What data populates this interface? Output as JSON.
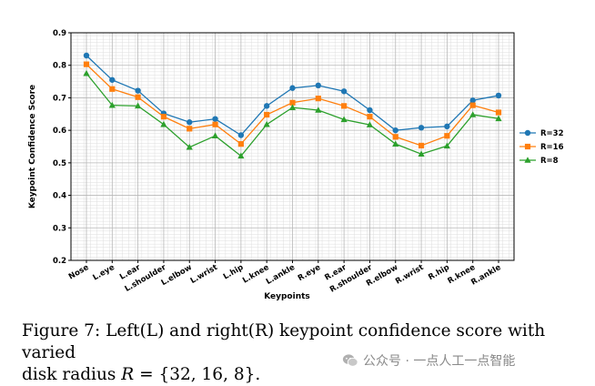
{
  "chart_data": {
    "type": "line",
    "title": "",
    "xlabel": "Keypoints",
    "ylabel": "Keypoint Confidence Score",
    "ylim": [
      0.2,
      0.9
    ],
    "yticks": [
      "0.2",
      "0.3",
      "0.4",
      "0.5",
      "0.6",
      "0.7",
      "0.8",
      "0.9"
    ],
    "grid": true,
    "legend_position": "right",
    "categories": [
      "Nose",
      "L.eye",
      "L.ear",
      "L.shoulder",
      "L.elbow",
      "L.wrist",
      "L.hip",
      "L.knee",
      "L.ankle",
      "R.eye",
      "R.ear",
      "R.shoulder",
      "R.elbow",
      "R.wrist",
      "R.hip",
      "R.knee",
      "R.ankle"
    ],
    "series": [
      {
        "name": "R=32",
        "color": "#1f77b4",
        "marker": "circle",
        "values": [
          0.83,
          0.755,
          0.722,
          0.652,
          0.625,
          0.635,
          0.585,
          0.675,
          0.73,
          0.738,
          0.72,
          0.662,
          0.6,
          0.608,
          0.612,
          0.692,
          0.707
        ]
      },
      {
        "name": "R=16",
        "color": "#ff7f0e",
        "marker": "square",
        "values": [
          0.803,
          0.727,
          0.702,
          0.642,
          0.605,
          0.618,
          0.558,
          0.648,
          0.685,
          0.698,
          0.675,
          0.642,
          0.58,
          0.553,
          0.583,
          0.677,
          0.655
        ]
      },
      {
        "name": "R=8",
        "color": "#2ca02c",
        "marker": "triangle",
        "values": [
          0.775,
          0.677,
          0.675,
          0.618,
          0.548,
          0.583,
          0.521,
          0.618,
          0.67,
          0.662,
          0.633,
          0.617,
          0.558,
          0.527,
          0.552,
          0.648,
          0.636
        ]
      }
    ]
  },
  "caption": {
    "line1": "Figure 7: Left(L) and right(R) keypoint confidence score with varied",
    "line2_prefix": "disk radius ",
    "math_var": "R",
    "math_rest": " = {32, 16, 8}",
    "line2_suffix": "."
  },
  "watermark": {
    "text": "公众号 · 一点人工一点智能"
  }
}
